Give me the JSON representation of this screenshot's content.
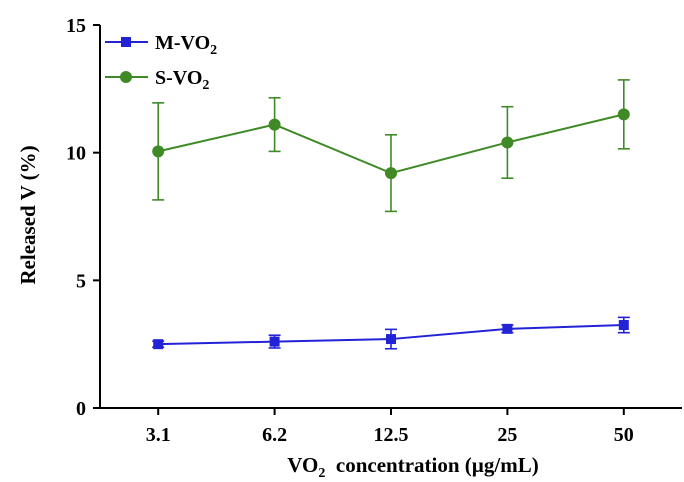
{
  "chart_data": {
    "type": "line",
    "categories": [
      "3.1",
      "6.2",
      "12.5",
      "25",
      "50"
    ],
    "xlabel": {
      "prefix": "VO",
      "sub": "2",
      "suffix": "  concentration (µg/mL)"
    },
    "ylabel": "Released V (%)",
    "ylim": [
      0,
      15
    ],
    "yticks": [
      0,
      5,
      10,
      15
    ],
    "grid": false,
    "legend_position": "top-left",
    "series": [
      {
        "name": "M-VO2",
        "label_main": "M-VO",
        "label_sub": "2",
        "color": "#2323d6",
        "marker": "square",
        "values": [
          2.5,
          2.6,
          2.7,
          3.1,
          3.25
        ],
        "errors": [
          0.12,
          0.25,
          0.38,
          0.15,
          0.3
        ]
      },
      {
        "name": "S-VO2",
        "label_main": "S-VO",
        "label_sub": "2",
        "color": "#3f8a26",
        "marker": "circle",
        "values": [
          10.05,
          11.1,
          9.2,
          10.4,
          11.5
        ],
        "errors": [
          1.9,
          1.05,
          1.5,
          1.4,
          1.35
        ]
      }
    ]
  }
}
